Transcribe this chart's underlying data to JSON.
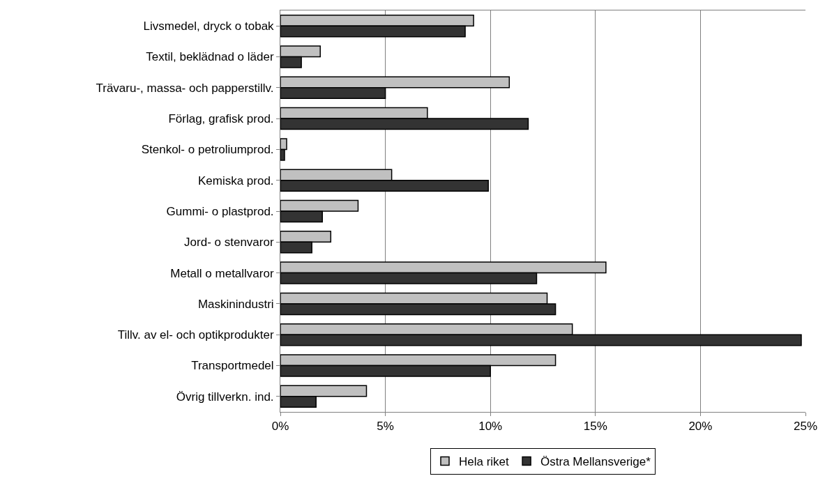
{
  "chart_data": {
    "type": "bar",
    "orientation": "horizontal",
    "categories": [
      "Livsmedel, dryck o tobak",
      "Textil, beklädnad o läder",
      "Trävaru-, massa- och papperstillv.",
      "Förlag, grafisk prod.",
      "Stenkol- o petroliumprod.",
      "Kemiska prod.",
      "Gummi- o plastprod.",
      "Jord- o stenvaror",
      "Metall o metallvaror",
      "Maskinindustri",
      "Tillv. av el- och optikprodukter",
      "Transportmedel",
      "Övrig tillverkn. ind."
    ],
    "series": [
      {
        "name": "Hela riket",
        "color": "#c0c0c0",
        "values": [
          9.2,
          1.9,
          10.9,
          7.0,
          0.3,
          5.3,
          3.7,
          2.4,
          15.5,
          12.7,
          13.9,
          13.1,
          4.1
        ]
      },
      {
        "name": "Östra Mellansverige*",
        "color": "#333333",
        "values": [
          8.8,
          1.0,
          5.0,
          11.8,
          0.2,
          9.9,
          2.0,
          1.5,
          12.2,
          13.1,
          24.8,
          10.0,
          1.7
        ]
      }
    ],
    "xlim": [
      0,
      25
    ],
    "xticks": [
      {
        "value": 0,
        "label": "0%"
      },
      {
        "value": 5,
        "label": "5%"
      },
      {
        "value": 10,
        "label": "10%"
      },
      {
        "value": 15,
        "label": "15%"
      },
      {
        "value": 20,
        "label": "20%"
      },
      {
        "value": 25,
        "label": "25%"
      }
    ],
    "grid": "x",
    "legend": "bottom"
  }
}
